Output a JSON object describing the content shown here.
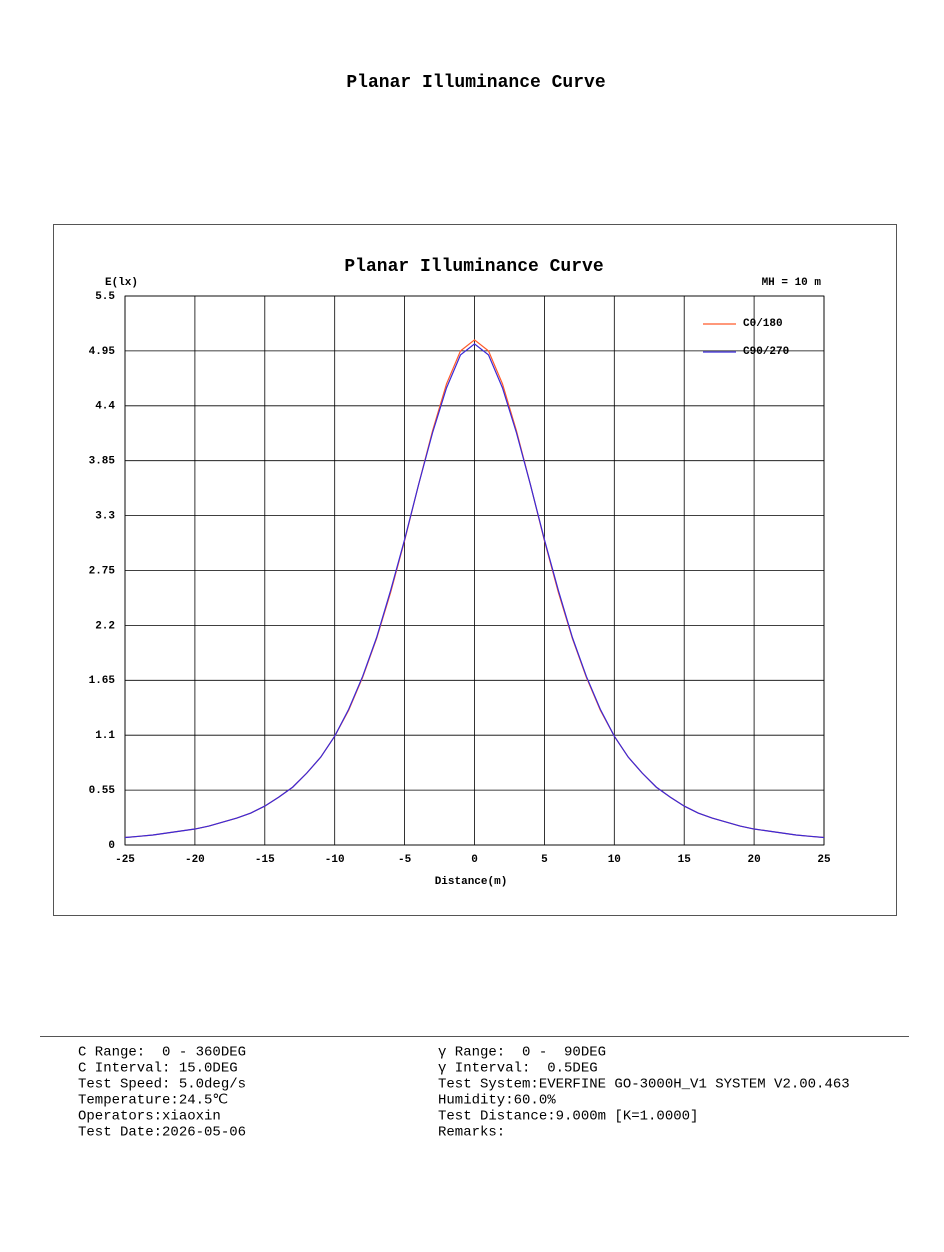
{
  "header": {
    "title": "Planar Illuminance Curve"
  },
  "chart_data": {
    "type": "line",
    "title": "Planar Illuminance Curve",
    "x_label": "Distance(m)",
    "y_label": "E(lx)",
    "annotation": "MH = 10 m",
    "x": [
      -25,
      -24,
      -23,
      -22,
      -21,
      -20,
      -19,
      -18,
      -17,
      -16,
      -15,
      -14,
      -13,
      -12,
      -11,
      -10,
      -9,
      -8,
      -7,
      -6,
      -5,
      -4,
      -3,
      -2,
      -1,
      0,
      1,
      2,
      3,
      4,
      5,
      6,
      7,
      8,
      9,
      10,
      11,
      12,
      13,
      14,
      15,
      16,
      17,
      18,
      19,
      20,
      21,
      22,
      23,
      24,
      25
    ],
    "series": [
      {
        "name": "C0/180",
        "color": "#ff5a2a",
        "values": [
          0.075,
          0.087,
          0.1,
          0.12,
          0.14,
          0.16,
          0.19,
          0.23,
          0.27,
          0.32,
          0.39,
          0.48,
          0.58,
          0.72,
          0.88,
          1.09,
          1.35,
          1.68,
          2.07,
          2.53,
          3.05,
          3.61,
          4.15,
          4.62,
          4.95,
          5.06,
          4.95,
          4.62,
          4.15,
          3.61,
          3.05,
          2.53,
          2.07,
          1.68,
          1.35,
          1.09,
          0.88,
          0.72,
          0.58,
          0.48,
          0.39,
          0.32,
          0.27,
          0.23,
          0.19,
          0.16,
          0.14,
          0.12,
          0.1,
          0.087,
          0.075
        ]
      },
      {
        "name": "C90/270",
        "color": "#3a2ad8",
        "values": [
          0.075,
          0.087,
          0.1,
          0.12,
          0.14,
          0.16,
          0.19,
          0.23,
          0.27,
          0.32,
          0.39,
          0.48,
          0.58,
          0.72,
          0.88,
          1.09,
          1.36,
          1.69,
          2.08,
          2.55,
          3.06,
          3.61,
          4.13,
          4.58,
          4.91,
          5.02,
          4.91,
          4.58,
          4.13,
          3.61,
          3.06,
          2.55,
          2.08,
          1.69,
          1.36,
          1.09,
          0.88,
          0.72,
          0.58,
          0.48,
          0.39,
          0.32,
          0.27,
          0.23,
          0.19,
          0.16,
          0.14,
          0.12,
          0.1,
          0.087,
          0.075
        ]
      }
    ],
    "xlim": [
      -25,
      25
    ],
    "xticks": [
      -25,
      -20,
      -15,
      -10,
      -5,
      0,
      5,
      10,
      15,
      20,
      25
    ],
    "ylim": [
      0,
      5.5
    ],
    "yticks": [
      0,
      0.55,
      1.1,
      1.65,
      2.2,
      2.75,
      3.3,
      3.85,
      4.4,
      4.95,
      5.5
    ],
    "grid": true,
    "legend": "upper right"
  },
  "footer": {
    "left": [
      "C Range:  0 - 360DEG",
      "C Interval: 15.0DEG",
      "Test Speed: 5.0deg/s",
      "Temperature:24.5℃",
      "Operators:xiaoxin",
      "Test Date:2026-05-06"
    ],
    "right": [
      "γ Range:  0 -  90DEG",
      "γ Interval:  0.5DEG",
      "Test System:EVERFINE GO-3000H_V1 SYSTEM V2.00.463",
      "Humidity:60.0%",
      "Test Distance:9.000m [K=1.0000]",
      "Remarks:"
    ]
  }
}
